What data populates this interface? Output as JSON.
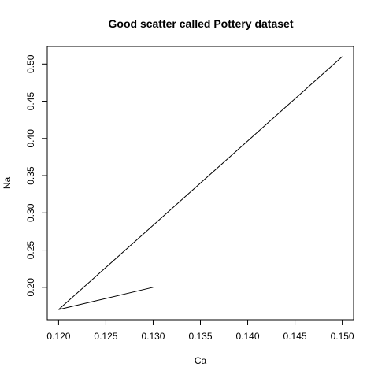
{
  "chart_data": {
    "type": "line",
    "title": "Good scatter called Pottery dataset",
    "xlabel": "Ca",
    "ylabel": "Na",
    "x": [
      0.13,
      0.12,
      0.15
    ],
    "y": [
      0.2,
      0.17,
      0.51
    ],
    "xlim": [
      0.1188,
      0.1512
    ],
    "ylim": [
      0.1564,
      0.5236
    ],
    "xticks": [
      0.12,
      0.125,
      0.13,
      0.135,
      0.14,
      0.145,
      0.15
    ],
    "xtick_labels": [
      "0.120",
      "0.125",
      "0.130",
      "0.135",
      "0.140",
      "0.145",
      "0.150"
    ],
    "yticks": [
      0.2,
      0.25,
      0.3,
      0.35,
      0.4,
      0.45,
      0.5
    ],
    "ytick_labels": [
      "0.20",
      "0.25",
      "0.30",
      "0.35",
      "0.40",
      "0.45",
      "0.50"
    ],
    "grid": false,
    "line_color": "#000000"
  }
}
